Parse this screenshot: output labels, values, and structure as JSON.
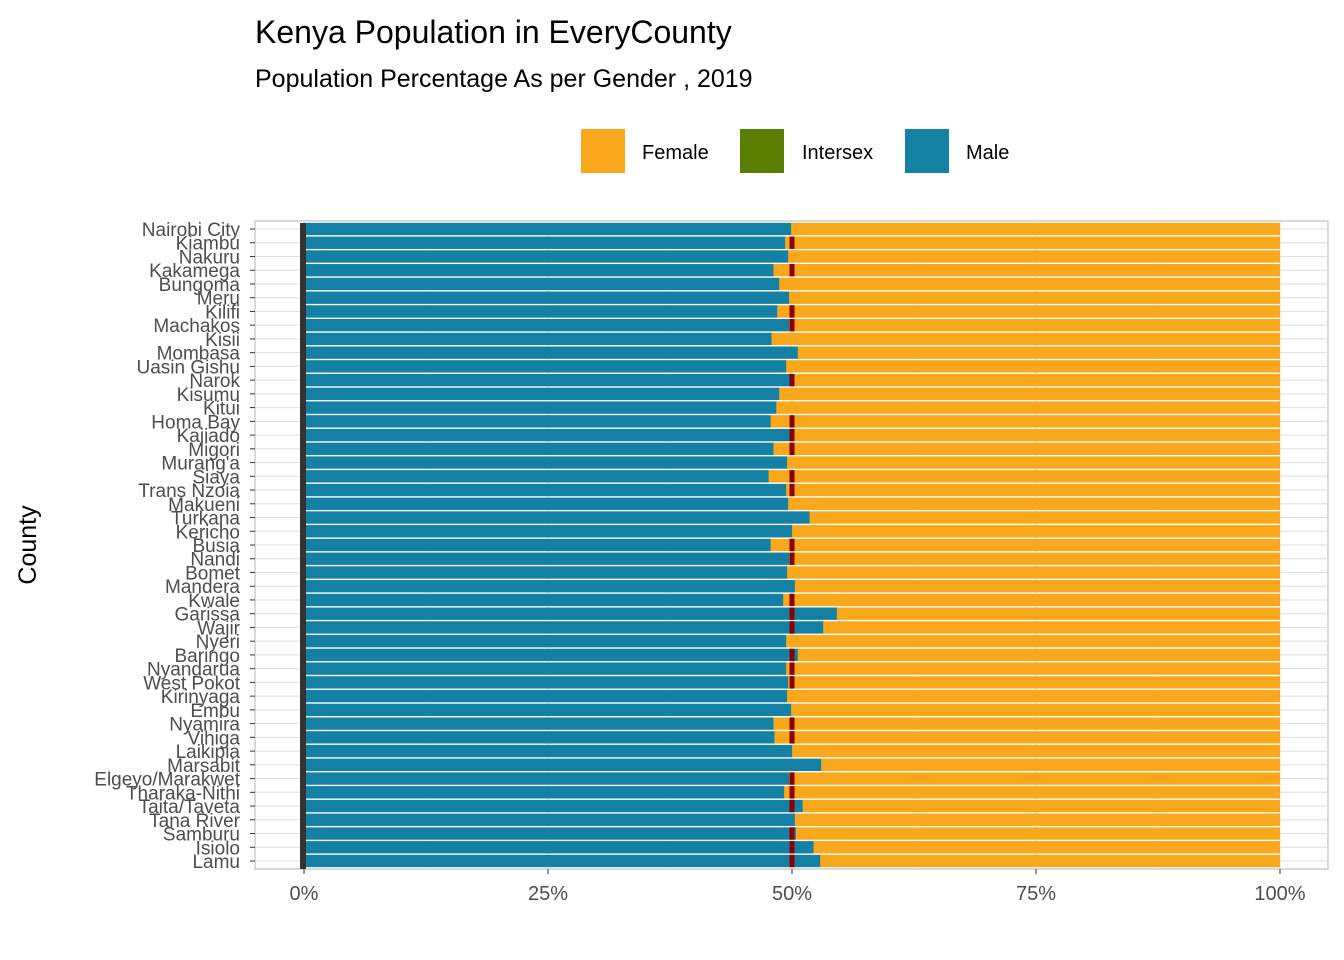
{
  "chart_data": {
    "type": "bar",
    "orientation": "horizontal",
    "stacked": "percent",
    "title": "Kenya Population in EveryCounty",
    "subtitle": "Population Percentage As per Gender , 2019",
    "xlabel": "",
    "ylabel": "County",
    "xlim": [
      0,
      1
    ],
    "xticks": [
      "0%",
      "25%",
      "50%",
      "75%",
      "100%"
    ],
    "legend_position": "top",
    "grid": true,
    "colors": {
      "Female": "#F9A81C",
      "Intersex": "#5A7F00",
      "Male": "#1480A3",
      "reference_line_0": "#333333",
      "marker": "#8B0000"
    },
    "categories": [
      "Nairobi City",
      "Kiambu",
      "Nakuru",
      "Kakamega",
      "Bungoma",
      "Meru",
      "Kilifi",
      "Machakos",
      "Kisii",
      "Mombasa",
      "Uasin Gishu",
      "Narok",
      "Kisumu",
      "Kitui",
      "Homa Bay",
      "Kajiado",
      "Migori",
      "Murang'a",
      "Siaya",
      "Trans Nzoia",
      "Makueni",
      "Turkana",
      "Kericho",
      "Busia",
      "Nandi",
      "Bomet",
      "Mandera",
      "Kwale",
      "Garissa",
      "Wajir",
      "Nyeri",
      "Baringo",
      "Nyandarua",
      "West Pokot",
      "Kirinyaga",
      "Embu",
      "Nyamira",
      "Vihiga",
      "Laikipia",
      "Marsabit",
      "Elgeyo/Marakwet",
      "Tharaka-Nithi",
      "Taita/Taveta",
      "Tana River",
      "Samburu",
      "Isiolo",
      "Lamu"
    ],
    "series": [
      {
        "name": "Male",
        "values": [
          0.499,
          0.493,
          0.496,
          0.481,
          0.487,
          0.497,
          0.485,
          0.497,
          0.479,
          0.506,
          0.494,
          0.5,
          0.487,
          0.484,
          0.478,
          0.5,
          0.481,
          0.495,
          0.476,
          0.494,
          0.496,
          0.518,
          0.5,
          0.478,
          0.497,
          0.495,
          0.503,
          0.491,
          0.546,
          0.532,
          0.494,
          0.506,
          0.494,
          0.496,
          0.495,
          0.499,
          0.481,
          0.482,
          0.5,
          0.53,
          0.497,
          0.492,
          0.511,
          0.503,
          0.504,
          0.522,
          0.529
        ]
      },
      {
        "name": "Intersex",
        "values": [
          0.0001,
          0.0001,
          0.0001,
          0.0001,
          0.0001,
          0.0001,
          0.0001,
          0.0001,
          0.0001,
          0.0001,
          0.0001,
          0.0001,
          0.0001,
          0.0001,
          0.0001,
          0.0001,
          0.0001,
          0.0001,
          0.0001,
          0.0001,
          0.0001,
          0.0001,
          0.0001,
          0.0001,
          0.0001,
          0.0001,
          0.0001,
          0.0001,
          0.0001,
          0.0001,
          0.0001,
          0.0001,
          0.0001,
          0.0001,
          0.0001,
          0.0001,
          0.0001,
          0.0001,
          0.0001,
          0.0001,
          0.0001,
          0.0001,
          0.0001,
          0.0001,
          0.0001,
          0.0001,
          0.0001
        ]
      },
      {
        "name": "Female",
        "values": [
          0.501,
          0.507,
          0.504,
          0.519,
          0.513,
          0.503,
          0.515,
          0.503,
          0.521,
          0.494,
          0.506,
          0.5,
          0.513,
          0.516,
          0.522,
          0.5,
          0.519,
          0.505,
          0.524,
          0.506,
          0.504,
          0.482,
          0.5,
          0.522,
          0.503,
          0.505,
          0.497,
          0.509,
          0.454,
          0.468,
          0.506,
          0.494,
          0.506,
          0.504,
          0.505,
          0.501,
          0.519,
          0.518,
          0.5,
          0.47,
          0.503,
          0.508,
          0.489,
          0.497,
          0.496,
          0.478,
          0.471
        ]
      }
    ],
    "marker_x": 0.5,
    "marker_rows": [
      "Kiambu",
      "Kakamega",
      "Kilifi",
      "Machakos",
      "Narok",
      "Homa Bay",
      "Kajiado",
      "Migori",
      "Siaya",
      "Trans Nzoia",
      "Busia",
      "Nandi",
      "Kwale",
      "Garissa",
      "Wajir",
      "Baringo",
      "Nyandarua",
      "West Pokot",
      "Nyamira",
      "Vihiga",
      "Elgeyo/Marakwet",
      "Tharaka-Nithi",
      "Taita/Taveta",
      "Samburu",
      "Isiolo",
      "Lamu"
    ]
  },
  "legend": [
    {
      "label": "Female",
      "color": "#F9A81C"
    },
    {
      "label": "Intersex",
      "color": "#5A7F00"
    },
    {
      "label": "Male",
      "color": "#1480A3"
    }
  ]
}
